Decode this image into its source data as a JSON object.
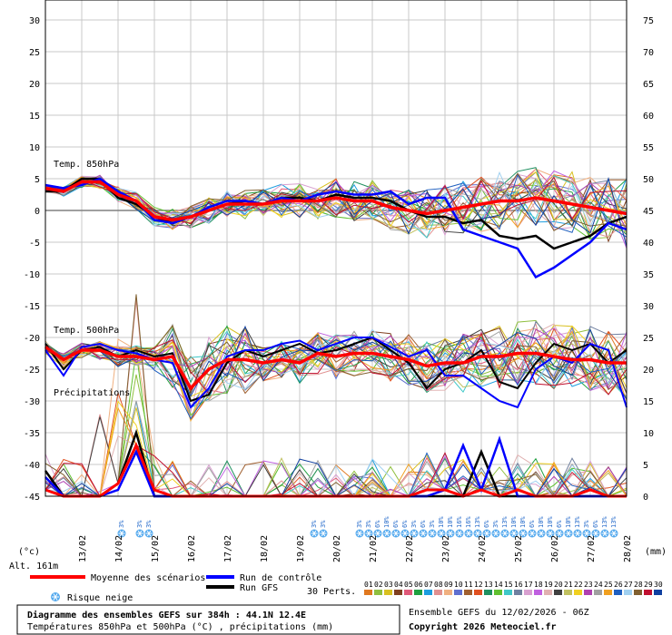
{
  "chart_data": {
    "type": "line",
    "title": "Diagramme des ensembles GEFS sur 384h : 44.1N 12.4E",
    "subtitle": "Températures 850hPa et 500hPa (°C) , précipitations (mm)",
    "run_info": "Ensemble GEFS du 12/02/2026 - 06Z",
    "copyright": "Copyright 2026 Meteociel.fr",
    "altitude": "Alt. 161m",
    "left_unit": "(°c)",
    "right_unit": "(mm)",
    "left_ticks": [
      "30",
      "25",
      "20",
      "15",
      "10",
      "5",
      "0",
      "-5",
      "-10",
      "-15",
      "-20",
      "-25",
      "-30",
      "-35",
      "-40",
      "-45"
    ],
    "right_ticks": [
      "75",
      "70",
      "65",
      "60",
      "55",
      "50",
      "45",
      "40",
      "35",
      "30",
      "25",
      "20",
      "15",
      "10",
      "5",
      "0"
    ],
    "x_dates": [
      "13/02",
      "14/02",
      "15/02",
      "16/02",
      "17/02",
      "18/02",
      "19/02",
      "20/02",
      "21/02",
      "22/02",
      "23/02",
      "24/02",
      "25/02",
      "26/02",
      "27/02",
      "28/02"
    ],
    "panel_labels": {
      "t850": "Temp. 850hPa",
      "t500": "Temp. 500hPa",
      "precip": "Précipitations"
    },
    "t850_mean": [
      3.5,
      3.0,
      4.5,
      4.5,
      2.5,
      1.5,
      -1.0,
      -1.5,
      -1.0,
      0.0,
      1.0,
      1.0,
      1.0,
      1.5,
      1.5,
      1.5,
      2.0,
      1.5,
      1.5,
      0.5,
      0.0,
      -0.5,
      0.0,
      0.5,
      1.0,
      1.5,
      1.5,
      2.0,
      1.5,
      1.0,
      0.5,
      0.0,
      -0.5
    ],
    "t850_gfs": [
      3.0,
      3.0,
      5.0,
      5.0,
      2.0,
      1.0,
      -1.0,
      -2.0,
      -1.0,
      0.0,
      1.0,
      1.5,
      1.0,
      2.0,
      2.0,
      1.5,
      2.5,
      2.0,
      2.0,
      1.5,
      0.0,
      -1.0,
      -1.0,
      -2.0,
      -1.5,
      -4.0,
      -4.5,
      -4.0,
      -6.0,
      -5.0,
      -4.0,
      -2.0,
      -1.0
    ],
    "t850_control": [
      4.0,
      3.5,
      4.0,
      5.0,
      3.0,
      1.5,
      -1.5,
      -2.0,
      -1.0,
      0.5,
      1.5,
      1.5,
      1.0,
      2.0,
      1.5,
      2.5,
      3.0,
      2.5,
      2.5,
      3.0,
      1.0,
      2.0,
      2.0,
      -3.0,
      -4.0,
      -5.0,
      -6.0,
      -10.5,
      -9.0,
      -7.0,
      -5.0,
      -2.0,
      -3.0
    ],
    "t500_mean": [
      -21.5,
      -23.5,
      -22.0,
      -22.0,
      -23.0,
      -23.0,
      -23.5,
      -23.0,
      -28.0,
      -25.0,
      -23.5,
      -23.5,
      -24.0,
      -23.5,
      -24.0,
      -22.5,
      -23.0,
      -22.5,
      -22.5,
      -23.0,
      -23.5,
      -24.5,
      -24.0,
      -24.0,
      -23.0,
      -23.0,
      -22.5,
      -22.5,
      -23.0,
      -23.5,
      -23.5,
      -24.0,
      -24.0
    ],
    "t500_gfs": [
      -21.0,
      -25.0,
      -22.0,
      -21.5,
      -23.0,
      -22.0,
      -23.0,
      -22.5,
      -30.0,
      -29.0,
      -24.0,
      -22.0,
      -23.0,
      -22.0,
      -21.0,
      -22.5,
      -22.0,
      -21.0,
      -20.0,
      -22.0,
      -24.0,
      -28.0,
      -25.0,
      -24.0,
      -22.0,
      -27.0,
      -28.0,
      -24.0,
      -21.0,
      -22.0,
      -21.0,
      -24.0,
      -22.0
    ],
    "t500_control": [
      -22.0,
      -26.0,
      -21.5,
      -21.0,
      -22.0,
      -22.5,
      -23.5,
      -24.0,
      -31.0,
      -28.0,
      -23.0,
      -22.0,
      -22.0,
      -21.0,
      -20.5,
      -22.0,
      -21.0,
      -20.0,
      -20.0,
      -21.5,
      -23.0,
      -22.0,
      -26.0,
      -26.0,
      -28.0,
      -30.0,
      -31.0,
      -25.0,
      -23.0,
      -24.0,
      -21.0,
      -22.0,
      -31.0
    ],
    "precip_mean": [
      1,
      0,
      0,
      0,
      2,
      8,
      1,
      0,
      0,
      0,
      0,
      0,
      0,
      0,
      0,
      0,
      0,
      0,
      0,
      0,
      0,
      1,
      1,
      0,
      1,
      0,
      1,
      0,
      0,
      0,
      1,
      0,
      0
    ],
    "precip_gfs": [
      4,
      0,
      0,
      0,
      2,
      10,
      0,
      0,
      0,
      0,
      0,
      0,
      0,
      0,
      0,
      0,
      0,
      0,
      0,
      0,
      0,
      0,
      0,
      0,
      7,
      0,
      0,
      0,
      0,
      0,
      0,
      0,
      0
    ],
    "precip_control": [
      3,
      0,
      0,
      0,
      1,
      7,
      0,
      0,
      0,
      0,
      0,
      0,
      0,
      0,
      0,
      0,
      0,
      0,
      0,
      0,
      0,
      0,
      1,
      8,
      1,
      9,
      0,
      0,
      0,
      0,
      0,
      0,
      0
    ],
    "snow_risk": [
      {
        "day": 2.1,
        "pct": "3%"
      },
      {
        "day": 2.6,
        "pct": "3%"
      },
      {
        "day": 2.85,
        "pct": "3%"
      },
      {
        "day": 7.4,
        "pct": "3%"
      },
      {
        "day": 7.65,
        "pct": "3%"
      },
      {
        "day": 8.65,
        "pct": "3%"
      },
      {
        "day": 8.9,
        "pct": "3%"
      },
      {
        "day": 9.15,
        "pct": "6%"
      },
      {
        "day": 9.4,
        "pct": "10%"
      },
      {
        "day": 9.65,
        "pct": "6%"
      },
      {
        "day": 9.9,
        "pct": "6%"
      },
      {
        "day": 10.15,
        "pct": "3%"
      },
      {
        "day": 10.4,
        "pct": "6%"
      },
      {
        "day": 10.65,
        "pct": "3%"
      },
      {
        "day": 10.9,
        "pct": "10%"
      },
      {
        "day": 11.15,
        "pct": "10%"
      },
      {
        "day": 11.4,
        "pct": "16%"
      },
      {
        "day": 11.65,
        "pct": "16%"
      },
      {
        "day": 11.9,
        "pct": "13%"
      },
      {
        "day": 12.15,
        "pct": "6%"
      },
      {
        "day": 12.4,
        "pct": "3%"
      },
      {
        "day": 12.65,
        "pct": "13%"
      },
      {
        "day": 12.9,
        "pct": "10%"
      },
      {
        "day": 13.15,
        "pct": "10%"
      },
      {
        "day": 13.4,
        "pct": "6%"
      },
      {
        "day": 13.65,
        "pct": "10%"
      },
      {
        "day": 13.9,
        "pct": "10%"
      },
      {
        "day": 14.15,
        "pct": "6%"
      },
      {
        "day": 14.4,
        "pct": "10%"
      },
      {
        "day": 14.65,
        "pct": "13%"
      },
      {
        "day": 14.9,
        "pct": "3%"
      },
      {
        "day": 15.15,
        "pct": "6%"
      },
      {
        "day": 15.4,
        "pct": "13%"
      },
      {
        "day": 15.65,
        "pct": "13%"
      }
    ]
  },
  "legend": {
    "mean": "Moyenne des scénarios",
    "control": "Run de contrôle",
    "gfs": "Run GFS",
    "snow": "Risque neige",
    "perts_label": "30 Perts.",
    "perts": [
      "01",
      "02",
      "03",
      "04",
      "05",
      "06",
      "07",
      "08",
      "09",
      "10",
      "11",
      "12",
      "13",
      "14",
      "15",
      "16",
      "17",
      "18",
      "19",
      "20",
      "21",
      "22",
      "23",
      "24",
      "25",
      "26",
      "27",
      "28",
      "29",
      "30"
    ],
    "pert_colors": [
      "#e07820",
      "#8fbf3f",
      "#d8c020",
      "#804020",
      "#e05878",
      "#20a040",
      "#1c9ee0",
      "#e09090",
      "#f0b080",
      "#6070d0",
      "#a06030",
      "#e05020",
      "#209060",
      "#60c030",
      "#40c8c8",
      "#7080a0",
      "#d8a0d0",
      "#c060e0",
      "#e0b0b0",
      "#404040",
      "#c0c060",
      "#f0d020",
      "#b040b0",
      "#a0a0a0",
      "#f0a020",
      "#2060c0",
      "#a0d0f0",
      "#806030",
      "#c01030",
      "#1040a0"
    ],
    "mean_color": "#ff0000",
    "control_color": "#0000ff",
    "gfs_color": "#000000"
  }
}
